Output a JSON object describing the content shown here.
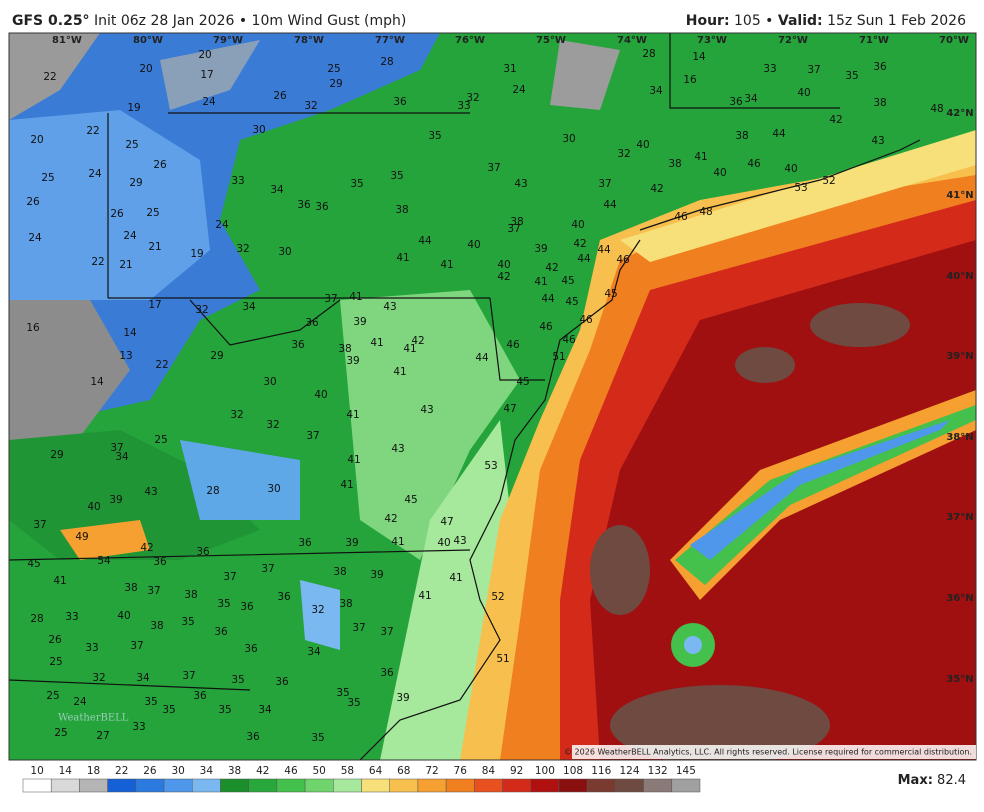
{
  "header": {
    "model": "GFS 0.25°",
    "init": "Init 06z 28 Jan 2026 • 10m Wind Gust (mph)",
    "hour_label": "Hour:",
    "hour": "105 •",
    "valid_label": "Valid:",
    "valid": "15z Sun 1 Feb 2026"
  },
  "longitudes": [
    "81°W",
    "80°W",
    "79°W",
    "78°W",
    "77°W",
    "76°W",
    "75°W",
    "74°W",
    "73°W",
    "72°W",
    "71°W",
    "70°W"
  ],
  "latitudes": [
    "42°N",
    "41°N",
    "40°N",
    "39°N",
    "38°N",
    "37°N",
    "36°N",
    "35°N"
  ],
  "map_labels": [
    22,
    20,
    20,
    17,
    24,
    26,
    32,
    25,
    29,
    28,
    36,
    33,
    32,
    31,
    24,
    28,
    14,
    16,
    34,
    33,
    37,
    35,
    36,
    38,
    40,
    34,
    36,
    42,
    48,
    22,
    19,
    20,
    25,
    26,
    30,
    35,
    30,
    32,
    40,
    38,
    44,
    43,
    46,
    40,
    53,
    52,
    25,
    24,
    29,
    33,
    34,
    35,
    35,
    37,
    43,
    37,
    38,
    41,
    40,
    42,
    26,
    26,
    25,
    36,
    36,
    38,
    44,
    46,
    48,
    24,
    24,
    21,
    24,
    32,
    30,
    44,
    40,
    38,
    37,
    40,
    39,
    42,
    44,
    22,
    21,
    19,
    41,
    41,
    40,
    42,
    44,
    46,
    17,
    32,
    34,
    37,
    41,
    43,
    42,
    41,
    45,
    44,
    45,
    45,
    16,
    14,
    13,
    36,
    39,
    46,
    46,
    46,
    22,
    29,
    36,
    38,
    39,
    41,
    41,
    42,
    44,
    46,
    51,
    14,
    30,
    40,
    41,
    45,
    32,
    32,
    41,
    43,
    47,
    37,
    34,
    25,
    29,
    37,
    41,
    43,
    53,
    43,
    40,
    39,
    28,
    30,
    41,
    45,
    37,
    42,
    47,
    49,
    42,
    54,
    36,
    36,
    39,
    41,
    40,
    43,
    45,
    41,
    36,
    37,
    37,
    38,
    39,
    38,
    37,
    38,
    35,
    36,
    36,
    41,
    41,
    52,
    28,
    33,
    40,
    38,
    35,
    36,
    32,
    38,
    37,
    37,
    26,
    33,
    37,
    36,
    34,
    25,
    32,
    34,
    37,
    35,
    36,
    36,
    51,
    25,
    24,
    35,
    35,
    36,
    35,
    34,
    35,
    35,
    39,
    33,
    25,
    27,
    36,
    35
  ],
  "colorbar": {
    "labels": [
      "10",
      "14",
      "18",
      "22",
      "26",
      "30",
      "34",
      "38",
      "42",
      "46",
      "50",
      "58",
      "64",
      "68",
      "72",
      "76",
      "84",
      "92",
      "100",
      "108",
      "116",
      "124",
      "132",
      "145"
    ],
    "colors": [
      "#ffffff",
      "#d9d9d9",
      "#b5b5b5",
      "#1560d6",
      "#2a7ae0",
      "#4f97ea",
      "#7ab8f2",
      "#1a8f2c",
      "#28a83a",
      "#44c04c",
      "#6fd46c",
      "#a6e89c",
      "#f7e07a",
      "#f7c04e",
      "#f5a030",
      "#f07f20",
      "#e85020",
      "#d42a1a",
      "#b01010",
      "#8a1010",
      "#7a3a30",
      "#6e4a40",
      "#8a7a78",
      "#a0a0a0"
    ]
  },
  "max_label": "Max:",
  "max_value": "82.4",
  "copyright": "© 2026 WeatherBELL Analytics, LLC. All rights reserved. License required for commercial distribution.",
  "logo": "WeatherBELL"
}
